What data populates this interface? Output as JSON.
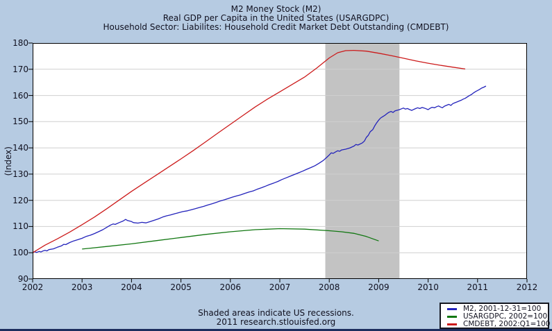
{
  "colors": {
    "page_bg": "#b6cbe2",
    "plot_bg": "#ffffff",
    "grid": "#cfcfcf",
    "recession_band": "#c3c3c3",
    "axis": "#000000",
    "text": "#10101f",
    "bottom_strip": "#1c2d5e"
  },
  "chart_data": {
    "type": "line",
    "title_lines": [
      "M2 Money Stock (M2)",
      "Real GDP per Capita in the United States (USARGDPC)",
      "Household Sector: Liabilites: Household Credit Market Debt Outstanding (CMDEBT)"
    ],
    "ylabel": "(Index)",
    "xlim": [
      2002,
      2012
    ],
    "ylim": [
      90,
      180
    ],
    "xticks": [
      2002,
      2003,
      2004,
      2005,
      2006,
      2007,
      2008,
      2009,
      2010,
      2011,
      2012
    ],
    "yticks": [
      90,
      100,
      110,
      120,
      130,
      140,
      150,
      160,
      170,
      180
    ],
    "grid": "horizontal",
    "legend_position": "bottom-right",
    "notes": [
      "Shaded areas indicate US recessions.",
      "2011 research.stlouisfed.org"
    ],
    "recession_bands": [
      [
        2007.92,
        2009.42
      ]
    ],
    "series": [
      {
        "id": "m2",
        "name": "M2, 2001-12-31=100",
        "color": "#2222bb",
        "points": [
          [
            2002.0,
            100.0
          ],
          [
            2002.04,
            100.4
          ],
          [
            2002.08,
            100.1
          ],
          [
            2002.13,
            100.5
          ],
          [
            2002.17,
            100.3
          ],
          [
            2002.21,
            100.7
          ],
          [
            2002.25,
            100.9
          ],
          [
            2002.29,
            100.7
          ],
          [
            2002.33,
            101.2
          ],
          [
            2002.42,
            101.5
          ],
          [
            2002.5,
            102.1
          ],
          [
            2002.58,
            102.6
          ],
          [
            2002.63,
            103.2
          ],
          [
            2002.67,
            103.1
          ],
          [
            2002.75,
            103.9
          ],
          [
            2002.83,
            104.5
          ],
          [
            2002.92,
            105.0
          ],
          [
            2003.0,
            105.5
          ],
          [
            2003.08,
            106.2
          ],
          [
            2003.17,
            106.7
          ],
          [
            2003.25,
            107.3
          ],
          [
            2003.33,
            108.0
          ],
          [
            2003.42,
            108.8
          ],
          [
            2003.5,
            109.7
          ],
          [
            2003.58,
            110.6
          ],
          [
            2003.63,
            111.0
          ],
          [
            2003.67,
            110.8
          ],
          [
            2003.75,
            111.5
          ],
          [
            2003.83,
            112.1
          ],
          [
            2003.88,
            112.7
          ],
          [
            2003.92,
            112.3
          ],
          [
            2004.0,
            111.9
          ],
          [
            2004.04,
            111.5
          ],
          [
            2004.13,
            111.3
          ],
          [
            2004.21,
            111.6
          ],
          [
            2004.29,
            111.4
          ],
          [
            2004.38,
            111.9
          ],
          [
            2004.46,
            112.4
          ],
          [
            2004.54,
            112.9
          ],
          [
            2004.63,
            113.6
          ],
          [
            2004.71,
            114.1
          ],
          [
            2004.79,
            114.4
          ],
          [
            2004.88,
            114.9
          ],
          [
            2004.96,
            115.3
          ],
          [
            2005.04,
            115.7
          ],
          [
            2005.13,
            116.0
          ],
          [
            2005.21,
            116.4
          ],
          [
            2005.29,
            116.8
          ],
          [
            2005.38,
            117.3
          ],
          [
            2005.46,
            117.7
          ],
          [
            2005.54,
            118.2
          ],
          [
            2005.63,
            118.7
          ],
          [
            2005.71,
            119.2
          ],
          [
            2005.79,
            119.7
          ],
          [
            2005.88,
            120.2
          ],
          [
            2005.96,
            120.7
          ],
          [
            2006.04,
            121.2
          ],
          [
            2006.13,
            121.7
          ],
          [
            2006.21,
            122.1
          ],
          [
            2006.29,
            122.6
          ],
          [
            2006.38,
            123.2
          ],
          [
            2006.46,
            123.6
          ],
          [
            2006.54,
            124.2
          ],
          [
            2006.63,
            124.8
          ],
          [
            2006.71,
            125.4
          ],
          [
            2006.79,
            126.0
          ],
          [
            2006.88,
            126.6
          ],
          [
            2006.96,
            127.2
          ],
          [
            2007.04,
            127.9
          ],
          [
            2007.13,
            128.6
          ],
          [
            2007.21,
            129.2
          ],
          [
            2007.29,
            129.8
          ],
          [
            2007.38,
            130.5
          ],
          [
            2007.46,
            131.1
          ],
          [
            2007.54,
            131.8
          ],
          [
            2007.63,
            132.5
          ],
          [
            2007.71,
            133.2
          ],
          [
            2007.79,
            134.1
          ],
          [
            2007.88,
            135.2
          ],
          [
            2007.96,
            136.6
          ],
          [
            2008.0,
            137.3
          ],
          [
            2008.04,
            138.1
          ],
          [
            2008.08,
            137.9
          ],
          [
            2008.13,
            138.5
          ],
          [
            2008.17,
            138.9
          ],
          [
            2008.21,
            138.7
          ],
          [
            2008.25,
            139.2
          ],
          [
            2008.33,
            139.5
          ],
          [
            2008.42,
            140.0
          ],
          [
            2008.5,
            140.7
          ],
          [
            2008.54,
            141.3
          ],
          [
            2008.58,
            141.1
          ],
          [
            2008.67,
            141.9
          ],
          [
            2008.71,
            142.6
          ],
          [
            2008.75,
            144.0
          ],
          [
            2008.79,
            144.8
          ],
          [
            2008.83,
            146.2
          ],
          [
            2008.88,
            147.0
          ],
          [
            2008.92,
            148.4
          ],
          [
            2008.96,
            149.6
          ],
          [
            2009.0,
            150.6
          ],
          [
            2009.04,
            151.4
          ],
          [
            2009.08,
            151.9
          ],
          [
            2009.13,
            152.5
          ],
          [
            2009.17,
            153.1
          ],
          [
            2009.21,
            153.6
          ],
          [
            2009.25,
            153.9
          ],
          [
            2009.29,
            153.5
          ],
          [
            2009.33,
            154.1
          ],
          [
            2009.42,
            154.6
          ],
          [
            2009.46,
            154.9
          ],
          [
            2009.5,
            155.2
          ],
          [
            2009.54,
            154.8
          ],
          [
            2009.58,
            155.0
          ],
          [
            2009.63,
            154.6
          ],
          [
            2009.67,
            154.3
          ],
          [
            2009.71,
            154.7
          ],
          [
            2009.75,
            155.0
          ],
          [
            2009.79,
            155.3
          ],
          [
            2009.83,
            155.0
          ],
          [
            2009.88,
            155.4
          ],
          [
            2009.92,
            155.2
          ],
          [
            2009.96,
            154.9
          ],
          [
            2010.0,
            154.6
          ],
          [
            2010.04,
            155.1
          ],
          [
            2010.08,
            155.5
          ],
          [
            2010.13,
            155.3
          ],
          [
            2010.17,
            155.7
          ],
          [
            2010.21,
            156.0
          ],
          [
            2010.25,
            155.6
          ],
          [
            2010.29,
            155.3
          ],
          [
            2010.33,
            155.9
          ],
          [
            2010.38,
            156.3
          ],
          [
            2010.42,
            156.6
          ],
          [
            2010.46,
            156.2
          ],
          [
            2010.5,
            156.9
          ],
          [
            2010.54,
            157.2
          ],
          [
            2010.58,
            157.5
          ],
          [
            2010.63,
            157.9
          ],
          [
            2010.67,
            158.2
          ],
          [
            2010.71,
            158.6
          ],
          [
            2010.75,
            158.9
          ],
          [
            2010.79,
            159.4
          ],
          [
            2010.83,
            159.9
          ],
          [
            2010.88,
            160.4
          ],
          [
            2010.92,
            161.0
          ],
          [
            2010.96,
            161.5
          ],
          [
            2011.0,
            161.9
          ],
          [
            2011.04,
            162.3
          ],
          [
            2011.08,
            162.8
          ],
          [
            2011.13,
            163.2
          ],
          [
            2011.17,
            163.6
          ]
        ]
      },
      {
        "id": "usargdpc",
        "name": "USARGDPC, 2002=100",
        "color": "#117711",
        "points": [
          [
            2003.0,
            101.4
          ],
          [
            2003.5,
            102.4
          ],
          [
            2004.0,
            103.4
          ],
          [
            2004.5,
            104.6
          ],
          [
            2005.0,
            105.8
          ],
          [
            2005.5,
            107.0
          ],
          [
            2006.0,
            108.0
          ],
          [
            2006.5,
            108.8
          ],
          [
            2007.0,
            109.2
          ],
          [
            2007.5,
            109.0
          ],
          [
            2008.0,
            108.4
          ],
          [
            2008.25,
            108.0
          ],
          [
            2008.5,
            107.4
          ],
          [
            2008.75,
            106.2
          ],
          [
            2009.0,
            104.5
          ]
        ]
      },
      {
        "id": "cmdebt",
        "name": "CMDEBT, 2002:Q1=100",
        "color": "#cc1a1a",
        "points": [
          [
            2002.0,
            100.0
          ],
          [
            2002.25,
            102.9
          ],
          [
            2002.5,
            105.3
          ],
          [
            2002.75,
            107.9
          ],
          [
            2003.0,
            110.7
          ],
          [
            2003.25,
            113.6
          ],
          [
            2003.5,
            116.8
          ],
          [
            2003.75,
            120.1
          ],
          [
            2004.0,
            123.4
          ],
          [
            2004.25,
            126.5
          ],
          [
            2004.5,
            129.6
          ],
          [
            2004.75,
            132.7
          ],
          [
            2005.0,
            135.8
          ],
          [
            2005.25,
            139.0
          ],
          [
            2005.5,
            142.3
          ],
          [
            2005.75,
            145.7
          ],
          [
            2006.0,
            149.0
          ],
          [
            2006.25,
            152.3
          ],
          [
            2006.5,
            155.6
          ],
          [
            2006.75,
            158.6
          ],
          [
            2007.0,
            161.4
          ],
          [
            2007.25,
            164.2
          ],
          [
            2007.5,
            167.0
          ],
          [
            2007.75,
            170.5
          ],
          [
            2008.0,
            174.3
          ],
          [
            2008.17,
            176.3
          ],
          [
            2008.33,
            177.1
          ],
          [
            2008.5,
            177.2
          ],
          [
            2008.75,
            176.9
          ],
          [
            2009.0,
            176.1
          ],
          [
            2009.25,
            175.2
          ],
          [
            2009.5,
            174.2
          ],
          [
            2009.75,
            173.2
          ],
          [
            2010.0,
            172.3
          ],
          [
            2010.25,
            171.5
          ],
          [
            2010.5,
            170.8
          ],
          [
            2010.75,
            170.1
          ]
        ]
      }
    ]
  }
}
